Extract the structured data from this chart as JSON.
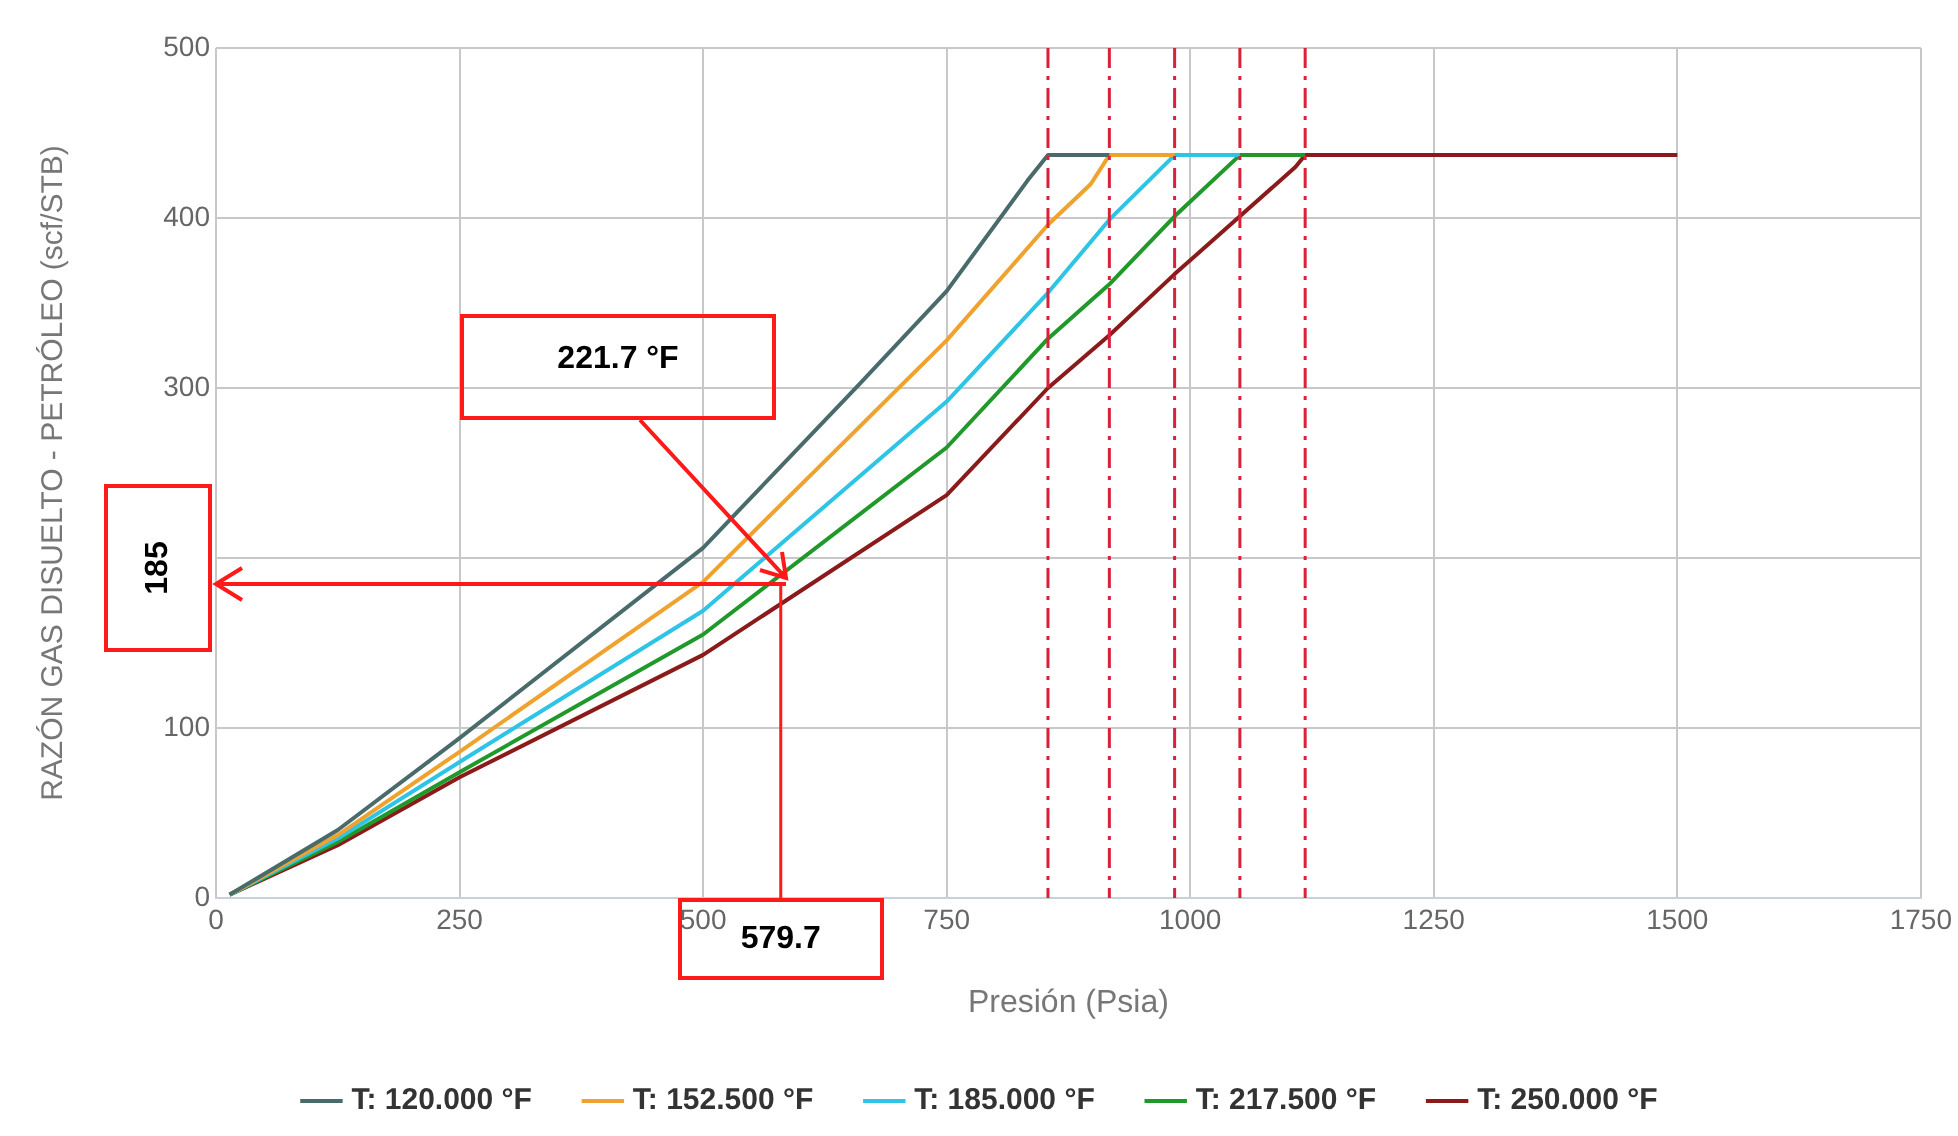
{
  "chart_data": {
    "type": "line",
    "xlabel": "Presión (Psia)",
    "ylabel": "RAZÓN GAS DISUELTO - PETRÓLEO (scf/STB)",
    "xlim": [
      0,
      1750
    ],
    "xticks": [
      0,
      250,
      500,
      750,
      1000,
      1250,
      1500,
      1750
    ],
    "ylim": [
      0,
      500
    ],
    "yticks": [
      0,
      100,
      {
        "value": 200,
        "label": null
      },
      300,
      400,
      500
    ],
    "grid": true,
    "legend": "bottom",
    "marker": "none",
    "line_style": "solid",
    "series": [
      {
        "name": "T: 120.000 °F",
        "color": "#4a6b6b",
        "x": [
          14,
          125,
          250,
          500,
          660,
          750,
          833,
          854,
          917
        ],
        "values": [
          2,
          40,
          94,
          206,
          302,
          357,
          422,
          437,
          437
        ]
      },
      {
        "name": "T: 152.500 °F",
        "color": "#f0a22e",
        "x": [
          14,
          125,
          250,
          500,
          750,
          854,
          898,
          917,
          984
        ],
        "values": [
          2,
          37,
          86,
          186,
          328,
          396,
          420,
          437,
          437
        ]
      },
      {
        "name": "T: 185.000 °F",
        "color": "#2ec4e6",
        "x": [
          14,
          125,
          250,
          500,
          750,
          854,
          917,
          984,
          1051
        ],
        "values": [
          2,
          35,
          80,
          169,
          292,
          356,
          399,
          437,
          437
        ]
      },
      {
        "name": "T: 217.500 °F",
        "color": "#21982a",
        "x": [
          14,
          125,
          250,
          500,
          750,
          854,
          917,
          984,
          1051,
          1118
        ],
        "values": [
          2,
          33,
          74,
          155,
          265,
          329,
          361,
          401,
          437,
          437
        ]
      },
      {
        "name": "T: 250.000 °F",
        "color": "#8b1a1a",
        "x": [
          14,
          125,
          250,
          500,
          750,
          854,
          917,
          984,
          1051,
          1108,
          1118,
          1500
        ],
        "values": [
          2,
          31,
          71,
          143,
          237,
          300,
          331,
          367,
          401,
          430,
          437,
          437
        ]
      }
    ],
    "ref_lines": [
      {
        "axis": "x",
        "value": 854,
        "color": "#d9213a",
        "line_style": "dashed"
      },
      {
        "axis": "x",
        "value": 917,
        "color": "#d9213a",
        "line_style": "dashed"
      },
      {
        "axis": "x",
        "value": 984,
        "color": "#d9213a",
        "line_style": "dashed"
      },
      {
        "axis": "x",
        "value": 1051,
        "color": "#d9213a",
        "line_style": "dashed"
      },
      {
        "axis": "x",
        "value": 1118,
        "color": "#d9213a",
        "line_style": "dashed"
      }
    ],
    "annotations": [
      "221.7 °F",
      "185",
      {
        "text": "579.7",
        "x": 579.7,
        "y": 185
      }
    ]
  }
}
